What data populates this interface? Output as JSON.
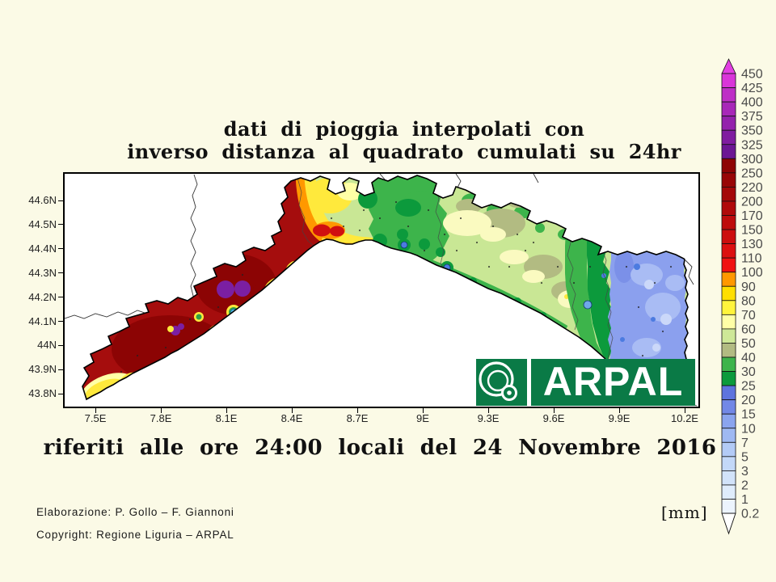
{
  "page": {
    "background": "#FBFAE6"
  },
  "title": {
    "line1": "dati di pioggia interpolati con",
    "line2": "inverso distanza al quadrato cumulati su 24hr"
  },
  "date_caption": "riferiti alle ore 24:00 locali del 24 Novembre 2016",
  "credits": {
    "elaborazione": "Elaborazione: P. Gollo – F. Giannoni",
    "copyright": "Copyright: Regione Liguria – ARPAL"
  },
  "units_label": "[mm]",
  "logo": {
    "text": "ARPAL",
    "green": "#0A7A46"
  },
  "axes": {
    "x_ticks": [
      "7.5E",
      "7.8E",
      "8.1E",
      "8.4E",
      "8.7E",
      "9E",
      "9.3E",
      "9.6E",
      "9.9E",
      "10.2E"
    ],
    "y_ticks": [
      "44.6N",
      "44.5N",
      "44.4N",
      "44.3N",
      "44.2N",
      "44.1N",
      "44N",
      "43.9N",
      "43.8N"
    ]
  },
  "colorbar": {
    "labels": [
      "450",
      "425",
      "400",
      "375",
      "350",
      "325",
      "300",
      "250",
      "220",
      "200",
      "170",
      "150",
      "130",
      "110",
      "100",
      "90",
      "80",
      "70",
      "60",
      "50",
      "40",
      "30",
      "25",
      "20",
      "15",
      "10",
      "7",
      "5",
      "3",
      "2",
      "1",
      "0.2"
    ],
    "cell_colors": [
      "#D935D9",
      "#BE2FC6",
      "#A828B8",
      "#9422AC",
      "#801CA0",
      "#6C1694",
      "#8E0404",
      "#980606",
      "#A40808",
      "#B00A0A",
      "#BE0C0C",
      "#CC0E0E",
      "#DC1010",
      "#F01212",
      "#FF9800",
      "#FFDF00",
      "#FFF43C",
      "#FFFFA6",
      "#CEE897",
      "#B2BB82",
      "#3DB44B",
      "#0C9A3C",
      "#5E74DE",
      "#7288E6",
      "#8AA4EE",
      "#9FB9F2",
      "#B3CBF6",
      "#C3D8F8",
      "#D2E3FA",
      "#DFECFC",
      "#ECF4FE"
    ],
    "arrow_top_color": "#E23EE2"
  },
  "chart_data": {
    "type": "heatmap",
    "title": "dati di pioggia interpolati con inverso distanza al quadrato cumulati su 24hr",
    "subtitle": "riferiti alle ore 24:00 locali del 24 Novembre 2016",
    "variable": "cumulated rainfall 24hr",
    "units": "mm",
    "region": "Liguria",
    "xlabel_ticks": [
      "7.5E",
      "7.8E",
      "8.1E",
      "8.4E",
      "8.7E",
      "9E",
      "9.3E",
      "9.6E",
      "9.9E",
      "10.2E"
    ],
    "ylabel_ticks": [
      "44.6N",
      "44.5N",
      "44.4N",
      "44.3N",
      "44.2N",
      "44.1N",
      "44N",
      "43.9N",
      "43.8N"
    ],
    "levels_mm": [
      0.2,
      1,
      2,
      3,
      5,
      7,
      10,
      15,
      20,
      25,
      30,
      40,
      50,
      60,
      70,
      80,
      90,
      100,
      110,
      130,
      150,
      170,
      200,
      220,
      250,
      300,
      325,
      350,
      375,
      400,
      425,
      450
    ],
    "pattern": [
      {
        "area": "western Liguria (7.6E-8.4E)",
        "value_mm": "200-300, local maxima >300 (purple spots)"
      },
      {
        "area": "Savona transition (8.3E-8.6E)",
        "value_mm": "60-150 (yellow-orange band)"
      },
      {
        "area": "central / Genova (8.6E-9.5E)",
        "value_mm": "25-70 (greens, pale yellow patches)"
      },
      {
        "area": "eastern / La Spezia (9.6E-10.2E)",
        "value_mm": "7-20 (blues)"
      }
    ]
  }
}
